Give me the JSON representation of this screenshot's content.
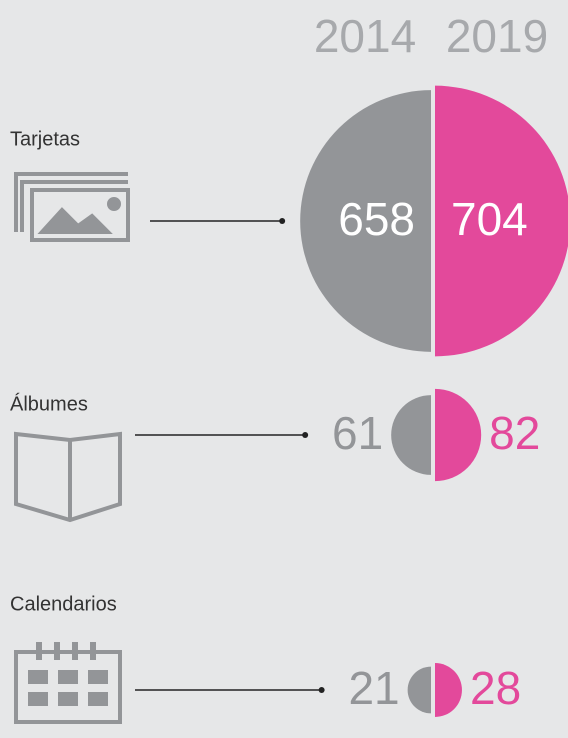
{
  "chart_data": {
    "type": "paired-half-circles",
    "categories": [
      "Tarjetas",
      "Álbumes",
      "Calendarios"
    ],
    "series": [
      {
        "name": "2014",
        "color": "#939598",
        "values": [
          658,
          61,
          21
        ]
      },
      {
        "name": "2019",
        "color": "#e3499b",
        "values": [
          704,
          82,
          28
        ]
      }
    ]
  }
}
